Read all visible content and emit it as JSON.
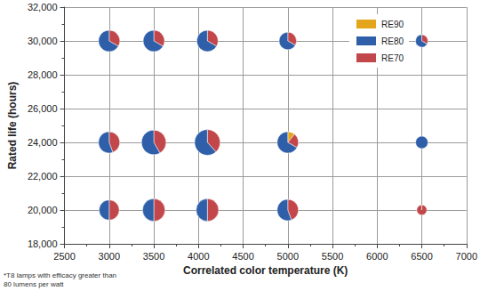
{
  "chart_data": {
    "type": "pie_bubble",
    "x_label": "Correlated color temperature (K)",
    "y_label": "Rated life (hours)",
    "annotations": [
      "*T8 lamps with efficacy greater than\n80 lumens per watt"
    ],
    "xlim": [
      2500,
      7000
    ],
    "xticks": [
      2500,
      3000,
      3500,
      4000,
      4500,
      5000,
      5500,
      6000,
      6500,
      7000
    ],
    "ylim": [
      18000,
      32000
    ],
    "yticks": [
      {
        "value": 18000,
        "label": "18,000"
      },
      {
        "value": 20000,
        "label": "20,000"
      },
      {
        "value": 22000,
        "label": "22,000"
      },
      {
        "value": 24000,
        "label": "24,000"
      },
      {
        "value": 26000,
        "label": "26,000"
      },
      {
        "value": 28000,
        "label": "28,000"
      },
      {
        "value": 30000,
        "label": "30,000"
      },
      {
        "value": 32000,
        "label": "32,000"
      }
    ],
    "grid": true,
    "legend": "upper right",
    "data_labels": true,
    "x": [
      3000,
      3500,
      4100,
      5000,
      6500,
      3000,
      3500,
      4100,
      5000,
      6500,
      3000,
      3500,
      4100,
      5000,
      6500
    ],
    "y": [
      30000,
      30000,
      30000,
      30000,
      30000,
      24000,
      24000,
      24000,
      24000,
      24000,
      20000,
      20000,
      20000,
      20000,
      20000
    ],
    "series": [
      {
        "name": "RE90",
        "color": "#e3a51c",
        "values": [
          0,
          0,
          0,
          0,
          0,
          0,
          0,
          0,
          1,
          0,
          0,
          0,
          0,
          0,
          0
        ]
      },
      {
        "name": "RE80",
        "color": "#2f5fa9",
        "values": [
          6,
          6,
          6,
          4,
          2,
          5,
          7,
          8,
          6,
          3,
          4,
          5,
          5,
          5,
          0
        ]
      },
      {
        "name": "RE70",
        "color": "#c2474b",
        "values": [
          3,
          3,
          3,
          2,
          1,
          4,
          5,
          5,
          2,
          0,
          4,
          5,
          5,
          4,
          2
        ]
      }
    ]
  }
}
